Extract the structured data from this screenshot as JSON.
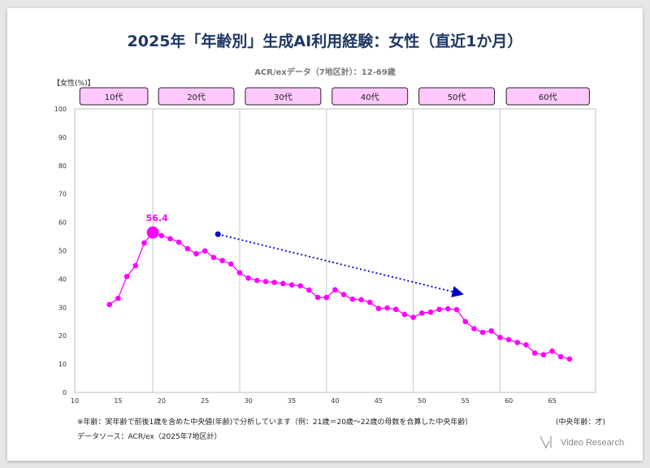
{
  "title": "2025年「年齢別」生成AI利用経験：女性（直近1か月）",
  "subtitle": "ACR/exデータ（7地区計）：12-69歳",
  "y_unit_label": "【女性(%)】",
  "footnote": "※年齢：実年齢で前後1歳を含めた中央値(年齢)で分析しています（例：21歳＝20歳〜22歳の母数を合算した中央年齢）",
  "x_axis_note": "(中央年齢：才)",
  "source": "データソース：ACR/ex（2025年7地区計）",
  "brand": "Video Research",
  "colors": {
    "series": "#ff00ff",
    "peak_label": "#ff00ff",
    "trend_arrow": "#0000cc",
    "age_box_fill": "#ffc8ff",
    "title": "#1f3864"
  },
  "chart_data": {
    "type": "line",
    "xlim": [
      10,
      70
    ],
    "ylim": [
      0,
      100
    ],
    "x_ticks": [
      10,
      15,
      20,
      25,
      30,
      35,
      40,
      45,
      50,
      55,
      60,
      65
    ],
    "y_ticks": [
      0,
      10,
      20,
      30,
      40,
      50,
      60,
      70,
      80,
      90,
      100
    ],
    "age_groups": [
      {
        "label": "10代",
        "range": [
          10,
          19
        ]
      },
      {
        "label": "20代",
        "range": [
          19,
          29
        ]
      },
      {
        "label": "30代",
        "range": [
          29,
          39
        ]
      },
      {
        "label": "40代",
        "range": [
          39,
          49
        ]
      },
      {
        "label": "50代",
        "range": [
          49,
          59
        ]
      },
      {
        "label": "60代",
        "range": [
          59,
          70
        ]
      }
    ],
    "group_dividers": [
      19,
      29,
      39,
      49,
      59
    ],
    "series": [
      {
        "x": [
          14,
          15,
          16,
          17,
          18,
          19,
          20,
          21,
          22,
          23,
          24,
          25,
          26,
          27,
          28,
          29,
          30,
          31,
          32,
          33,
          34,
          35,
          36,
          37,
          38,
          39,
          40,
          41,
          42,
          43,
          44,
          45,
          46,
          47,
          48,
          49,
          50,
          51,
          52,
          53,
          54,
          55,
          56,
          57,
          58,
          59,
          60,
          61,
          62,
          63,
          64,
          65,
          66,
          67
        ],
        "values": [
          31.0,
          33.2,
          40.9,
          44.7,
          52.7,
          56.4,
          55.3,
          54.2,
          53.0,
          50.7,
          48.9,
          49.9,
          47.6,
          46.5,
          45.3,
          42.2,
          40.3,
          39.5,
          39.1,
          38.8,
          38.4,
          37.9,
          37.6,
          36.1,
          33.5,
          33.5,
          36.2,
          34.5,
          32.9,
          32.7,
          31.8,
          29.6,
          29.8,
          29.3,
          27.5,
          26.5,
          28.0,
          28.3,
          29.3,
          29.5,
          29.2,
          25.0,
          22.5,
          21.2,
          21.7,
          19.4,
          18.6,
          17.6,
          16.8,
          13.9,
          13.3,
          14.6,
          12.6,
          11.8
        ]
      }
    ],
    "peak": {
      "x": 19,
      "value": 56.4,
      "label": "56.4"
    },
    "trend_arrow": {
      "from": [
        26.5,
        55.8
      ],
      "to": [
        54.5,
        34.8
      ]
    }
  }
}
